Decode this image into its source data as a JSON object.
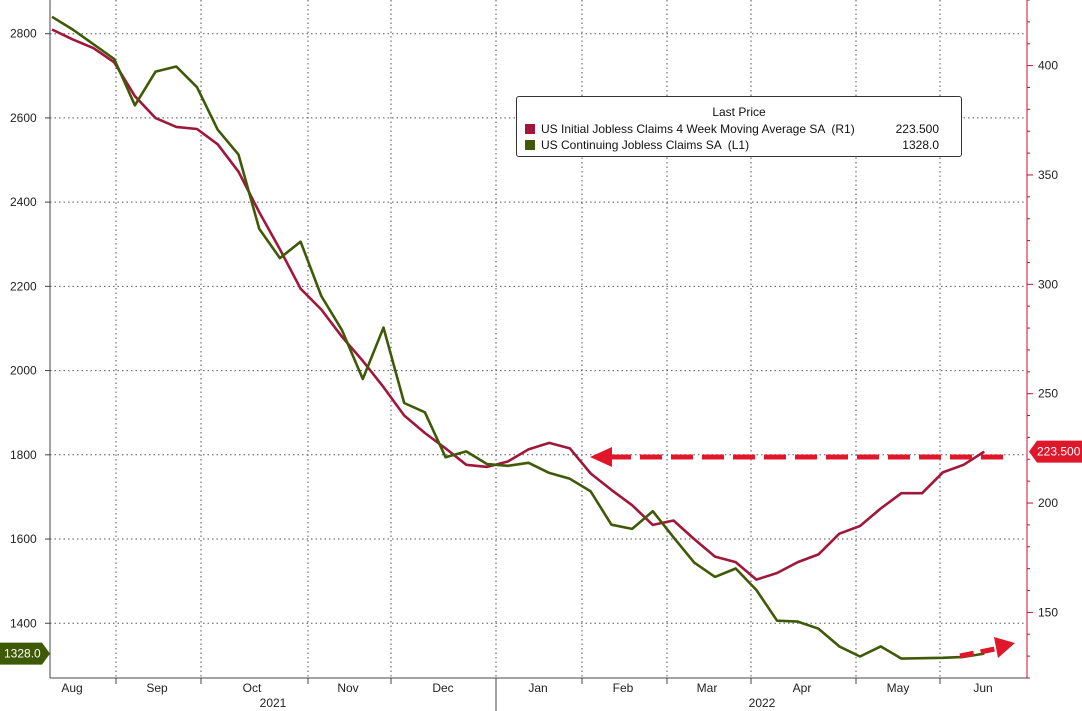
{
  "chart_data": {
    "type": "line",
    "left_axis": {
      "ticks": [
        "1400",
        "1600",
        "1800",
        "2000",
        "2200",
        "2400",
        "2600",
        "2800"
      ],
      "range": [
        1270,
        2880
      ]
    },
    "right_axis": {
      "ticks": [
        "150",
        "200",
        "250",
        "300",
        "350",
        "400"
      ],
      "range": [
        120,
        430
      ],
      "color": "#c8102e"
    },
    "x_axis": {
      "months": [
        "Aug",
        "Sep",
        "Oct",
        "Nov",
        "Dec",
        "Jan",
        "Feb",
        "Mar",
        "Apr",
        "May",
        "Jun"
      ],
      "years": [
        "2021",
        "2022"
      ],
      "range": [
        0,
        46
      ]
    },
    "legend": {
      "title": "Last Price",
      "placement": "top-right",
      "entries": [
        {
          "name": "US Initial Jobless Claims 4 Week Moving Average SA  (R1)",
          "value": "223.500",
          "color": "#a0173a"
        },
        {
          "name": "US Continuing Jobless Claims SA  (L1)",
          "value": "1328.0",
          "color": "#3f5a07"
        }
      ]
    },
    "series": [
      {
        "name": "US Initial Jobless Claims 4 Week Moving Average SA  (R1)",
        "axis": "right",
        "color": "#a0173a",
        "last_label": "223.500",
        "x": [
          0,
          1,
          2,
          3,
          4,
          5,
          6,
          7,
          8,
          9,
          10,
          11,
          12,
          13,
          14,
          15,
          16,
          17,
          18,
          19,
          20,
          21,
          22,
          23,
          24,
          25,
          26,
          27,
          28,
          29,
          30,
          31,
          32,
          33,
          34,
          35,
          36,
          37,
          38,
          39,
          40,
          41,
          42,
          43,
          44,
          45
        ],
        "values": [
          416.5,
          412,
          408,
          401.5,
          386,
          376,
          372,
          371,
          364,
          351.5,
          333,
          316,
          298,
          288.5,
          276,
          265,
          253,
          240,
          232,
          225,
          217.5,
          216.5,
          219,
          224.5,
          227.5,
          225,
          213.5,
          206,
          199,
          190,
          192,
          183.5,
          175.5,
          173,
          165,
          168,
          173,
          176.5,
          186,
          189.5,
          197.5,
          204.5,
          204.5,
          214,
          217.5,
          223.5
        ]
      },
      {
        "name": "US Continuing Jobless Claims SA  (L1)",
        "axis": "left",
        "color": "#3f5a07",
        "last_label": "1328.0",
        "x": [
          0,
          1,
          2,
          3,
          4,
          5,
          6,
          7,
          8,
          9,
          10,
          11,
          12,
          13,
          14,
          15,
          16,
          17,
          18,
          19,
          20,
          21,
          22,
          23,
          24,
          25,
          26,
          27,
          28,
          29,
          30,
          31,
          32,
          33,
          34,
          35,
          36,
          37,
          38,
          39,
          40,
          41,
          42,
          43,
          44,
          45
        ],
        "values": [
          2840,
          2810,
          2775,
          2740,
          2630,
          2710,
          2722,
          2673,
          2572,
          2513,
          2337,
          2267,
          2306,
          2177,
          2096,
          1980,
          2102,
          1923,
          1901,
          1794,
          1808,
          1778,
          1774,
          1781,
          1757,
          1743,
          1713,
          1634,
          1624,
          1666,
          1604,
          1544,
          1510,
          1530,
          1479,
          1406,
          1404,
          1387,
          1345,
          1321,
          1345,
          1316,
          1317,
          1318,
          1320,
          1328
        ]
      }
    ]
  }
}
